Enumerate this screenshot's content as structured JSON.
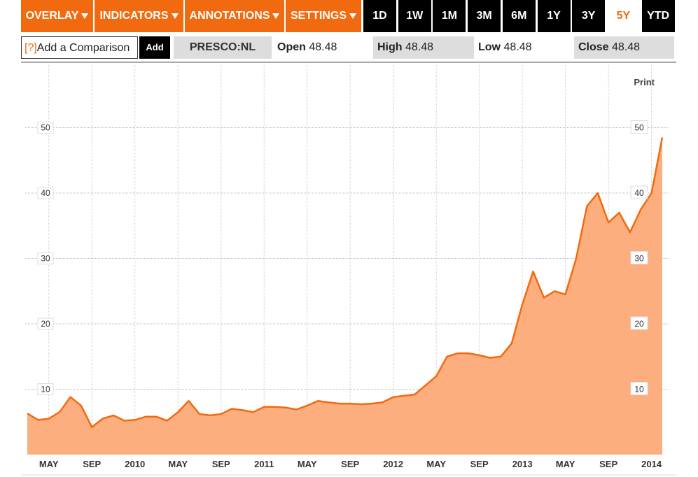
{
  "toolbar": {
    "menus": [
      "OVERLAY",
      "INDICATORS",
      "ANNOTATIONS",
      "SETTINGS"
    ],
    "ranges": [
      "1D",
      "1W",
      "1M",
      "3M",
      "6M",
      "1Y",
      "3Y",
      "5Y",
      "YTD"
    ],
    "selected_range": "5Y"
  },
  "comparison": {
    "help": "[?]",
    "placeholder": "Add a Comparison",
    "button": "Add"
  },
  "quote": {
    "symbol": "PRESCO:NL",
    "open_label": "Open",
    "open": 48.48,
    "high_label": "High",
    "high": 48.48,
    "low_label": "Low",
    "low": 48.48,
    "close_label": "Close",
    "close": 48.48
  },
  "print": "Print",
  "chart_data": {
    "type": "area",
    "x": [
      "2009-03",
      "2009-04",
      "2009-05",
      "2009-06",
      "2009-07",
      "2009-08",
      "2009-09",
      "2009-10",
      "2009-11",
      "2009-12",
      "2010-01",
      "2010-02",
      "2010-03",
      "2010-04",
      "2010-05",
      "2010-06",
      "2010-07",
      "2010-08",
      "2010-09",
      "2010-10",
      "2010-11",
      "2010-12",
      "2011-01",
      "2011-02",
      "2011-03",
      "2011-04",
      "2011-05",
      "2011-06",
      "2011-07",
      "2011-08",
      "2011-09",
      "2011-10",
      "2011-11",
      "2011-12",
      "2012-01",
      "2012-02",
      "2012-03",
      "2012-04",
      "2012-05",
      "2012-06",
      "2012-07",
      "2012-08",
      "2012-09",
      "2012-10",
      "2012-11",
      "2012-12",
      "2013-01",
      "2013-02",
      "2013-03",
      "2013-04",
      "2013-05",
      "2013-06",
      "2013-07",
      "2013-08",
      "2013-09",
      "2013-10",
      "2013-11",
      "2013-12",
      "2014-01",
      "2014-02"
    ],
    "values": [
      6.3,
      5.3,
      5.5,
      6.5,
      8.8,
      7.5,
      4.2,
      5.5,
      6.0,
      5.2,
      5.3,
      5.8,
      5.8,
      5.2,
      6.5,
      8.2,
      6.2,
      6.0,
      6.2,
      7.0,
      6.8,
      6.5,
      7.3,
      7.3,
      7.2,
      6.9,
      7.5,
      8.2,
      8.0,
      7.8,
      7.8,
      7.7,
      7.8,
      8.0,
      8.8,
      9.0,
      9.2,
      10.6,
      12.0,
      15.0,
      15.5,
      15.5,
      15.2,
      14.8,
      15.0,
      17.0,
      23.0,
      28.0,
      24.0,
      25.0,
      24.5,
      30.0,
      38.0,
      40.0,
      35.5,
      37.0,
      34.0,
      37.5,
      40.0,
      48.5
    ],
    "line_color": "#f26a0f",
    "fill_color": "#fdae7f",
    "xlim": [
      "2009-03",
      "2014-02"
    ],
    "xticks": [
      {
        "value": "2009-05",
        "label": "MAY"
      },
      {
        "value": "2009-09",
        "label": "SEP"
      },
      {
        "value": "2010-01",
        "label": "2010"
      },
      {
        "value": "2010-05",
        "label": "MAY"
      },
      {
        "value": "2010-09",
        "label": "SEP"
      },
      {
        "value": "2011-01",
        "label": "2011"
      },
      {
        "value": "2011-05",
        "label": "MAY"
      },
      {
        "value": "2011-09",
        "label": "SEP"
      },
      {
        "value": "2012-01",
        "label": "2012"
      },
      {
        "value": "2012-05",
        "label": "MAY"
      },
      {
        "value": "2012-09",
        "label": "SEP"
      },
      {
        "value": "2013-01",
        "label": "2013"
      },
      {
        "value": "2013-05",
        "label": "MAY"
      },
      {
        "value": "2013-09",
        "label": "SEP"
      },
      {
        "value": "2014-01",
        "label": "2014"
      }
    ],
    "ylim": [
      0,
      60
    ],
    "yticks": [
      10,
      20,
      30,
      40,
      50
    ],
    "grid": true
  }
}
